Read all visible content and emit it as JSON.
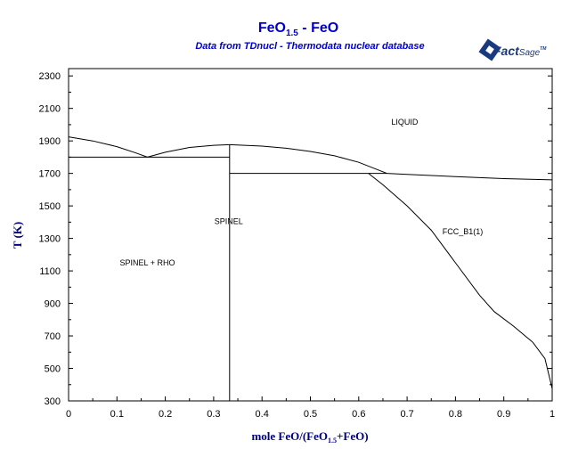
{
  "chart_data": {
    "type": "line",
    "title_main": "FeO",
    "title_sub": "1.5",
    "title_rest": " - FeO",
    "subtitle": "Data from TDnucl - Thermodata nuclear database",
    "logo": {
      "word1": "Fact",
      "word2": "Sage",
      "mark": "TM"
    },
    "ylabel": "T (K)",
    "xlabel": {
      "part1": "mole FeO/(FeO",
      "sub": "1.5",
      "part2": "+FeO)"
    },
    "xlim": [
      0,
      1
    ],
    "ylim": [
      300,
      2400
    ],
    "xticks": [
      0,
      0.1,
      0.2,
      0.3,
      0.4,
      0.5,
      0.6,
      0.7,
      0.8,
      0.9,
      1
    ],
    "xtick_labels": [
      "0",
      "0.1",
      "0.2",
      "0.3",
      "0.4",
      "0.5",
      "0.6",
      "0.7",
      "0.8",
      "0.9",
      "1"
    ],
    "yticks": [
      300,
      500,
      700,
      900,
      1100,
      1300,
      1500,
      1700,
      1900,
      2100,
      2300
    ],
    "ytick_labels": [
      "300",
      "500",
      "700",
      "900",
      "1100",
      "1300",
      "1500",
      "1700",
      "1900",
      "2100",
      "2300"
    ],
    "grid": false,
    "regions": [
      {
        "label": "LIQUID",
        "x": 0.695,
        "y": 2016
      },
      {
        "label": "SPINEL",
        "x": 0.331,
        "y": 1405
      },
      {
        "label": "SPINEL + RHO",
        "x": 0.163,
        "y": 1150
      },
      {
        "label": "FCC_B1(1)",
        "x": 0.815,
        "y": 1343
      }
    ],
    "series": [
      {
        "values": [
          [
            0,
            1925
          ],
          [
            0.05,
            1900
          ],
          [
            0.1,
            1865
          ],
          [
            0.14,
            1825
          ],
          [
            0.163,
            1800
          ]
        ]
      },
      {
        "values": [
          [
            0.163,
            1800
          ],
          [
            0.2,
            1830
          ],
          [
            0.25,
            1860
          ],
          [
            0.3,
            1873
          ],
          [
            0.333,
            1877
          ]
        ]
      },
      {
        "values": [
          [
            0.333,
            1877
          ],
          [
            0.4,
            1868
          ],
          [
            0.45,
            1855
          ],
          [
            0.5,
            1835
          ],
          [
            0.55,
            1808
          ],
          [
            0.6,
            1768
          ],
          [
            0.65,
            1710
          ],
          [
            0.658,
            1700
          ]
        ]
      },
      {
        "values": [
          [
            0.658,
            1700
          ],
          [
            0.7,
            1694
          ],
          [
            0.8,
            1680
          ],
          [
            0.9,
            1668
          ],
          [
            1.0,
            1660
          ]
        ]
      },
      {
        "values": [
          [
            0,
            1800
          ],
          [
            0.333,
            1800
          ]
        ]
      },
      {
        "values": [
          [
            0.333,
            1700
          ],
          [
            0.658,
            1700
          ]
        ]
      },
      {
        "values": [
          [
            0.333,
            300
          ],
          [
            0.333,
            1877
          ]
        ]
      },
      {
        "values": [
          [
            0.62,
            1700
          ],
          [
            0.65,
            1630
          ],
          [
            0.7,
            1500
          ],
          [
            0.75,
            1350
          ],
          [
            0.8,
            1150
          ],
          [
            0.85,
            950
          ],
          [
            0.88,
            850
          ],
          [
            0.92,
            760
          ],
          [
            0.96,
            660
          ],
          [
            0.985,
            560
          ],
          [
            1.0,
            375
          ]
        ]
      }
    ]
  }
}
